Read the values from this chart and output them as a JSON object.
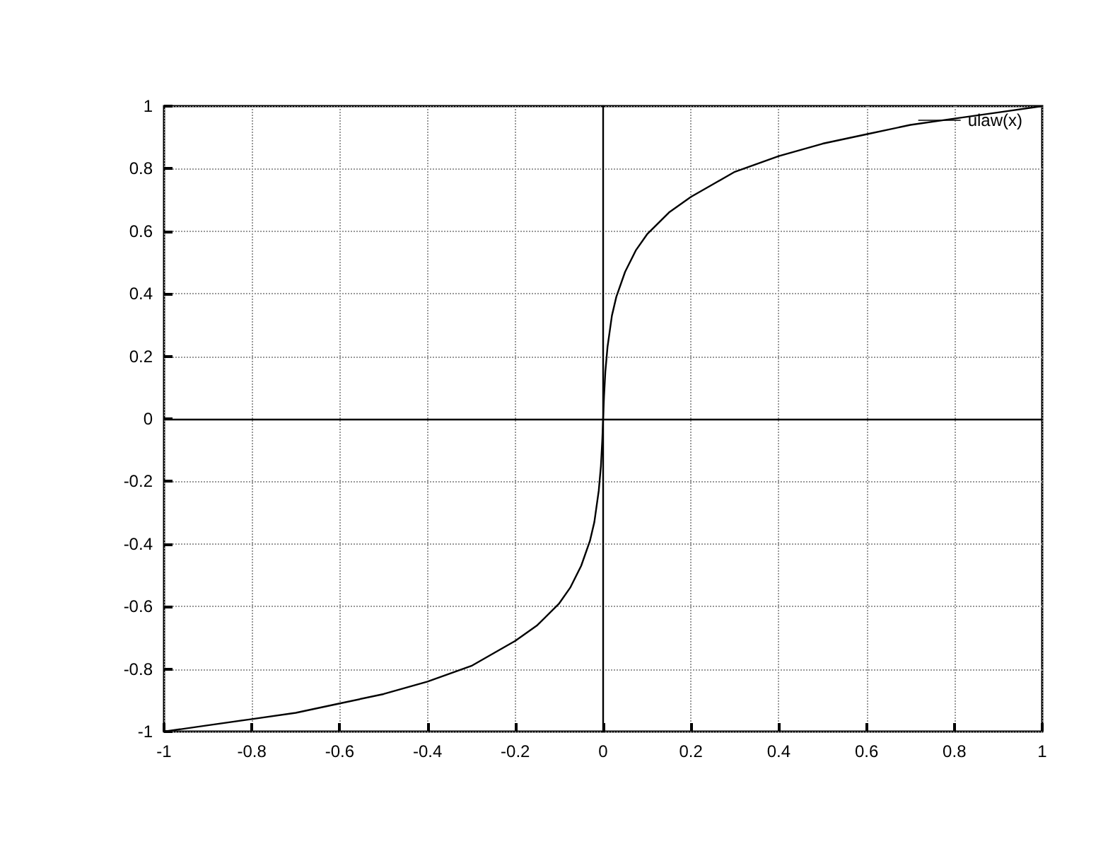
{
  "chart_data": {
    "type": "line",
    "x": [
      -1,
      -0.9,
      -0.8,
      -0.7,
      -0.6,
      -0.5,
      -0.4,
      -0.3,
      -0.2,
      -0.15,
      -0.1,
      -0.075,
      -0.05,
      -0.03,
      -0.02,
      -0.01,
      -0.005,
      -0.002,
      0,
      0.002,
      0.005,
      0.01,
      0.02,
      0.03,
      0.05,
      0.075,
      0.1,
      0.15,
      0.2,
      0.3,
      0.4,
      0.5,
      0.6,
      0.7,
      0.8,
      0.9,
      1
    ],
    "series": [
      {
        "name": "ulaw(x)",
        "color": "#000000",
        "values": [
          -1,
          -0.98,
          -0.96,
          -0.94,
          -0.91,
          -0.88,
          -0.84,
          -0.79,
          -0.71,
          -0.66,
          -0.59,
          -0.54,
          -0.47,
          -0.39,
          -0.33,
          -0.23,
          -0.15,
          -0.07,
          0,
          0.07,
          0.15,
          0.23,
          0.33,
          0.39,
          0.47,
          0.54,
          0.59,
          0.66,
          0.71,
          0.79,
          0.84,
          0.88,
          0.91,
          0.94,
          0.96,
          0.98,
          1
        ]
      }
    ],
    "xlim": [
      -1,
      1
    ],
    "ylim": [
      -1,
      1
    ],
    "xticks": [
      -1,
      -0.8,
      -0.6,
      -0.4,
      -0.2,
      0,
      0.2,
      0.4,
      0.6,
      0.8,
      1
    ],
    "yticks": [
      -1,
      -0.8,
      -0.6,
      -0.4,
      -0.2,
      0,
      0.2,
      0.4,
      0.6,
      0.8,
      1
    ],
    "grid": true,
    "legend": "top right",
    "marker": "none",
    "line_style": "solid"
  }
}
